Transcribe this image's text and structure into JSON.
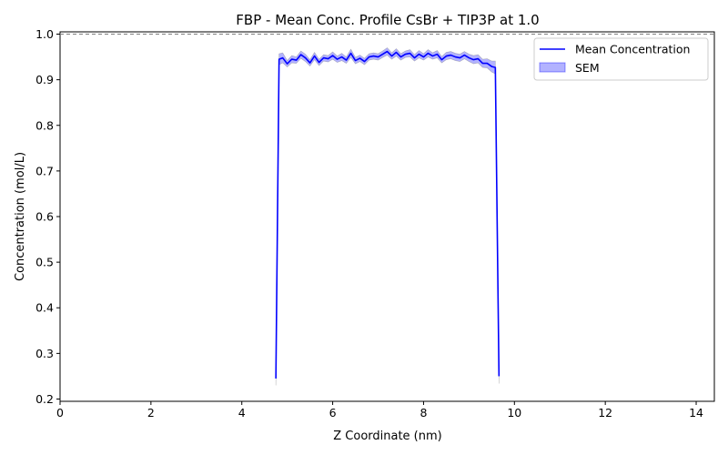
{
  "chart_data": {
    "type": "line",
    "title": "FBP - Mean Conc. Profile CsBr + TIP3P at 1.0",
    "xlabel": "Z Coordinate (nm)",
    "ylabel": "Concentration (mol/L)",
    "xlim": [
      0,
      14.4
    ],
    "ylim": [
      0.195,
      1.005
    ],
    "x_ticks": [
      0,
      2,
      4,
      6,
      8,
      10,
      12,
      14
    ],
    "y_ticks": [
      0.2,
      0.3,
      0.4,
      0.5,
      0.6,
      0.7,
      0.8,
      0.9,
      1.0
    ],
    "reference_line": {
      "y": 1.0,
      "style": "dashed",
      "color": "#808080"
    },
    "legend": {
      "position": "top-right",
      "entries": [
        "Mean Concentration",
        "SEM"
      ]
    },
    "grid": false,
    "colors": {
      "line": "#0000ff",
      "band": "#0000ff",
      "band_opacity": 0.3,
      "band_edge": "#808080"
    },
    "series": [
      {
        "name": "Mean Concentration",
        "x": [
          4.75,
          4.82,
          4.9,
          5.0,
          5.1,
          5.2,
          5.3,
          5.4,
          5.5,
          5.6,
          5.7,
          5.8,
          5.9,
          6.0,
          6.1,
          6.2,
          6.3,
          6.4,
          6.5,
          6.6,
          6.7,
          6.8,
          6.9,
          7.0,
          7.1,
          7.2,
          7.3,
          7.4,
          7.5,
          7.6,
          7.7,
          7.8,
          7.9,
          8.0,
          8.1,
          8.2,
          8.3,
          8.4,
          8.5,
          8.6,
          8.7,
          8.8,
          8.9,
          9.0,
          9.1,
          9.2,
          9.3,
          9.4,
          9.5,
          9.58,
          9.66
        ],
        "y": [
          0.245,
          0.945,
          0.948,
          0.935,
          0.945,
          0.943,
          0.955,
          0.948,
          0.937,
          0.952,
          0.938,
          0.948,
          0.946,
          0.953,
          0.945,
          0.95,
          0.943,
          0.958,
          0.942,
          0.947,
          0.94,
          0.95,
          0.952,
          0.95,
          0.956,
          0.962,
          0.952,
          0.96,
          0.95,
          0.956,
          0.958,
          0.948,
          0.956,
          0.95,
          0.958,
          0.952,
          0.956,
          0.944,
          0.952,
          0.954,
          0.95,
          0.948,
          0.954,
          0.948,
          0.944,
          0.946,
          0.936,
          0.936,
          0.929,
          0.927,
          0.25
        ],
        "sem": [
          0.015,
          0.012,
          0.011,
          0.007,
          0.008,
          0.007,
          0.008,
          0.008,
          0.007,
          0.008,
          0.007,
          0.007,
          0.007,
          0.008,
          0.007,
          0.008,
          0.007,
          0.009,
          0.007,
          0.007,
          0.007,
          0.007,
          0.007,
          0.007,
          0.007,
          0.008,
          0.007,
          0.008,
          0.007,
          0.007,
          0.008,
          0.007,
          0.008,
          0.007,
          0.008,
          0.007,
          0.008,
          0.007,
          0.008,
          0.008,
          0.008,
          0.008,
          0.008,
          0.008,
          0.009,
          0.009,
          0.009,
          0.01,
          0.012,
          0.014,
          0.016
        ]
      }
    ]
  }
}
